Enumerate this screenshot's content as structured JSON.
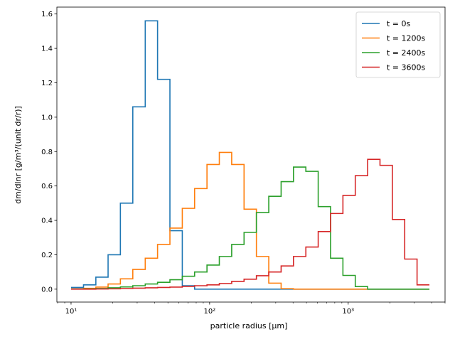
{
  "chart_data": {
    "type": "line",
    "title": "",
    "xlabel": "particle radius [μm]",
    "ylabel": "dm/dlnr [g/m³/(unit dr/r)]",
    "xscale": "log",
    "xlim": [
      7.9,
      5000
    ],
    "ylim": [
      -0.075,
      1.64
    ],
    "xticks": [
      {
        "value": 10,
        "label": "10¹"
      },
      {
        "value": 100,
        "label": "10²"
      },
      {
        "value": 1000,
        "label": "10³"
      }
    ],
    "yticks": [
      0.0,
      0.2,
      0.4,
      0.6,
      0.8,
      1.0,
      1.2,
      1.4,
      1.6
    ],
    "ytick_labels": [
      "0.0",
      "0.2",
      "0.4",
      "0.6",
      "0.8",
      "1.0",
      "1.2",
      "1.4",
      "1.6"
    ],
    "grid": false,
    "legend_position": "top-right",
    "step_style": "histogram steps over logarithmic bins",
    "bin_edges": [
      10,
      12.3,
      15.1,
      18.5,
      22.7,
      27.9,
      34.3,
      42.1,
      51.7,
      63.5,
      77.9,
      95.7,
      117.5,
      144.3,
      177.2,
      217.6,
      267.2,
      328.1,
      402.9,
      494.8,
      607.5,
      746.0,
      916.1,
      1124.9,
      1381.3,
      1696.1,
      2082.7,
      2557.4,
      3140.3,
      3856.1
    ],
    "series": [
      {
        "name": "t = 0s",
        "color": "#1f77b4",
        "values": [
          0.01,
          0.025,
          0.07,
          0.2,
          0.5,
          1.06,
          1.56,
          1.22,
          0.34,
          0.02,
          0.0,
          0.0,
          0.0,
          0.0,
          0.0,
          0.0,
          0.0,
          0.0,
          0.0,
          0.0,
          0.0,
          0.0,
          0.0,
          0.0,
          0.0,
          0.0,
          0.0,
          0.0,
          0.0
        ]
      },
      {
        "name": "t = 1200s",
        "color": "#ff7f0e",
        "values": [
          0.002,
          0.005,
          0.012,
          0.03,
          0.06,
          0.115,
          0.18,
          0.26,
          0.355,
          0.47,
          0.585,
          0.725,
          0.795,
          0.725,
          0.465,
          0.19,
          0.035,
          0.003,
          0.0,
          0.0,
          0.0,
          0.0,
          0.0,
          0.0,
          0.0,
          0.0,
          0.0,
          0.0,
          0.0
        ]
      },
      {
        "name": "t = 2400s",
        "color": "#2ca02c",
        "values": [
          0.001,
          0.002,
          0.004,
          0.008,
          0.013,
          0.02,
          0.03,
          0.04,
          0.055,
          0.075,
          0.1,
          0.14,
          0.19,
          0.26,
          0.33,
          0.445,
          0.54,
          0.625,
          0.71,
          0.685,
          0.48,
          0.18,
          0.08,
          0.015,
          0.0,
          0.0,
          0.0,
          0.0,
          0.0
        ]
      },
      {
        "name": "t = 3600s",
        "color": "#d62728",
        "values": [
          0.0,
          0.0,
          0.001,
          0.002,
          0.004,
          0.006,
          0.008,
          0.01,
          0.012,
          0.016,
          0.02,
          0.025,
          0.033,
          0.045,
          0.058,
          0.078,
          0.1,
          0.135,
          0.19,
          0.245,
          0.335,
          0.44,
          0.545,
          0.66,
          0.755,
          0.72,
          0.405,
          0.175,
          0.025
        ]
      }
    ]
  }
}
